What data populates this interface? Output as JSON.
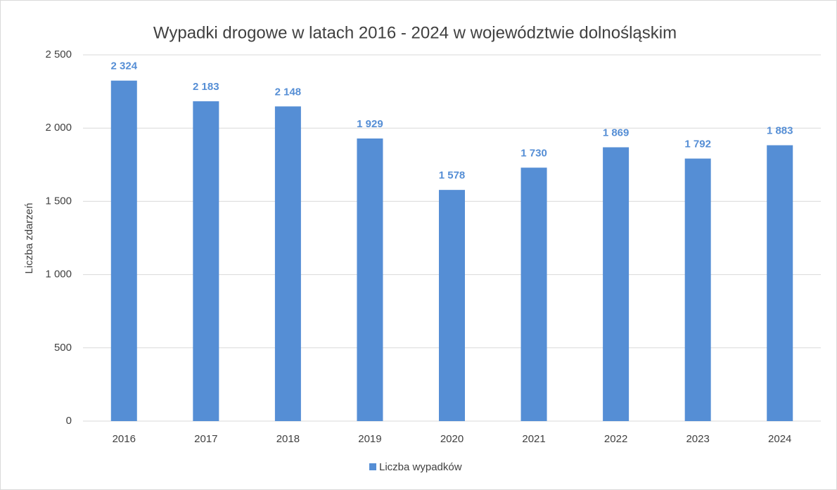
{
  "chart_data": {
    "type": "bar",
    "title": "Wypadki drogowe w latach 2016 - 2024 w województwie dolnośląskim",
    "y_label": "Liczba zdarzeń",
    "categories": [
      "2016",
      "2017",
      "2018",
      "2019",
      "2020",
      "2021",
      "2022",
      "2023",
      "2024"
    ],
    "series": [
      {
        "name": "Liczba wypadków",
        "color": "#558ed5",
        "values": [
          2324,
          2183,
          2148,
          1929,
          1578,
          1730,
          1869,
          1792,
          1883
        ],
        "value_labels": [
          "2 324",
          "2 183",
          "2 148",
          "1 929",
          "1 578",
          "1 730",
          "1 869",
          "1 792",
          "1 883"
        ]
      }
    ],
    "ylim": [
      0,
      2500
    ],
    "yticks": [
      0,
      500,
      {
        "value": 1000,
        "label": "1 000"
      },
      {
        "value": 1500,
        "label": "1 500"
      },
      {
        "value": 2000,
        "label": "2 000"
      },
      {
        "value": 2500,
        "label": "2 500"
      }
    ],
    "grid": true,
    "legend": "bottom"
  }
}
